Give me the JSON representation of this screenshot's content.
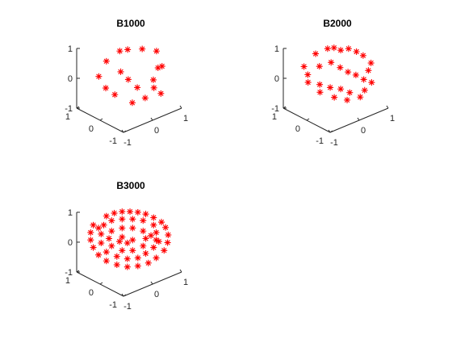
{
  "figure": {
    "background": "#ffffff",
    "axis_color": "#262626"
  },
  "chart_data": [
    {
      "type": "scatter3d",
      "title": "B1000",
      "marker": "*",
      "color": "#ff0000",
      "xlim": [
        -1,
        1
      ],
      "ylim": [
        -1,
        1
      ],
      "zlim": [
        -1,
        1
      ],
      "xticks": [
        "-1",
        "0",
        "1"
      ],
      "yticks": [
        "-1",
        "0",
        "1"
      ],
      "zticks": [
        "-1",
        "0",
        "1"
      ],
      "grid": false,
      "view": {
        "azimuth": -37.5,
        "elevation": 30
      },
      "points": [
        {
          "x": -0.3,
          "y": 0.6,
          "z": 0.45
        },
        {
          "x": 0.0,
          "y": 0.4,
          "z": 0.75
        },
        {
          "x": 0.15,
          "y": 0.25,
          "z": 0.8
        },
        {
          "x": 0.45,
          "y": 0.0,
          "z": 0.8
        },
        {
          "x": 0.7,
          "y": -0.3,
          "z": 0.75
        },
        {
          "x": 0.85,
          "y": -0.35,
          "z": 0.2
        },
        {
          "x": 0.55,
          "y": -0.55,
          "z": 0.35
        },
        {
          "x": 0.35,
          "y": -0.6,
          "z": 0.05
        },
        {
          "x": -0.4,
          "y": 0.8,
          "z": -0.1
        },
        {
          "x": -0.25,
          "y": 0.05,
          "z": 0.3
        },
        {
          "x": 0.05,
          "y": 0.1,
          "z": -0.1
        },
        {
          "x": 0.2,
          "y": -0.1,
          "z": -0.35
        },
        {
          "x": 0.45,
          "y": -0.5,
          "z": -0.3
        },
        {
          "x": -0.2,
          "y": 0.75,
          "z": -0.55
        },
        {
          "x": -0.05,
          "y": 0.55,
          "z": -0.75
        },
        {
          "x": 0.15,
          "y": 0.05,
          "z": -0.9
        },
        {
          "x": 0.35,
          "y": -0.25,
          "z": -0.7
        },
        {
          "x": 0.65,
          "y": -0.55,
          "z": -0.55
        }
      ]
    },
    {
      "type": "scatter3d",
      "title": "B2000",
      "marker": "*",
      "color": "#ff0000",
      "xlim": [
        -1,
        1
      ],
      "ylim": [
        -1,
        1
      ],
      "zlim": [
        -1,
        1
      ],
      "xticks": [
        "-1",
        "0",
        "1"
      ],
      "yticks": [
        "-1",
        "0",
        "1"
      ],
      "zticks": [
        "-1",
        "0",
        "1"
      ],
      "grid": false,
      "view": {
        "azimuth": -37.5,
        "elevation": 30
      },
      "points": [
        {
          "x": -0.25,
          "y": 0.55,
          "z": 0.7
        },
        {
          "x": 0.0,
          "y": 0.35,
          "z": 0.85
        },
        {
          "x": 0.1,
          "y": 0.2,
          "z": 0.9
        },
        {
          "x": 0.25,
          "y": 0.1,
          "z": 0.8
        },
        {
          "x": 0.4,
          "y": -0.05,
          "z": 0.85
        },
        {
          "x": 0.55,
          "y": -0.2,
          "z": 0.75
        },
        {
          "x": 0.7,
          "y": -0.3,
          "z": 0.6
        },
        {
          "x": 0.85,
          "y": -0.45,
          "z": 0.35
        },
        {
          "x": 0.8,
          "y": -0.4,
          "z": 0.1
        },
        {
          "x": -0.45,
          "y": 0.8,
          "z": 0.25
        },
        {
          "x": -0.4,
          "y": 0.7,
          "z": 0.0
        },
        {
          "x": -0.2,
          "y": 0.45,
          "z": 0.3
        },
        {
          "x": 0.0,
          "y": 0.2,
          "z": 0.45
        },
        {
          "x": 0.15,
          "y": 0.0,
          "z": 0.3
        },
        {
          "x": 0.3,
          "y": -0.15,
          "z": 0.15
        },
        {
          "x": 0.45,
          "y": -0.3,
          "z": 0.05
        },
        {
          "x": 0.6,
          "y": -0.45,
          "z": -0.1
        },
        {
          "x": 0.75,
          "y": -0.6,
          "z": -0.2
        },
        {
          "x": 0.55,
          "y": -0.55,
          "z": -0.4
        },
        {
          "x": -0.35,
          "y": 0.75,
          "z": -0.3
        },
        {
          "x": -0.15,
          "y": 0.5,
          "z": -0.35
        },
        {
          "x": 0.05,
          "y": 0.3,
          "z": -0.45
        },
        {
          "x": 0.25,
          "y": 0.1,
          "z": -0.5
        },
        {
          "x": 0.4,
          "y": -0.1,
          "z": -0.6
        },
        {
          "x": 0.15,
          "y": 0.25,
          "z": -0.8
        },
        {
          "x": 0.35,
          "y": -0.05,
          "z": -0.85
        },
        {
          "x": -0.1,
          "y": 0.55,
          "z": -0.65
        },
        {
          "x": 0.6,
          "y": -0.3,
          "z": -0.75
        }
      ]
    },
    {
      "type": "scatter3d",
      "title": "B3000",
      "marker": "*",
      "color": "#ff0000",
      "xlim": [
        -1,
        1
      ],
      "ylim": [
        -1,
        1
      ],
      "zlim": [
        -1,
        1
      ],
      "xticks": [
        "-1",
        "0",
        "1"
      ],
      "yticks": [
        "-1",
        "0",
        "1"
      ],
      "zticks": [
        "-1",
        "0",
        "1"
      ],
      "grid": false,
      "view": {
        "azimuth": -37.5,
        "elevation": 30
      },
      "points": [
        {
          "x": -0.3,
          "y": 0.6,
          "z": 0.75
        },
        {
          "x": -0.15,
          "y": 0.45,
          "z": 0.85
        },
        {
          "x": 0.0,
          "y": 0.3,
          "z": 0.9
        },
        {
          "x": 0.15,
          "y": 0.15,
          "z": 0.9
        },
        {
          "x": 0.3,
          "y": 0.0,
          "z": 0.88
        },
        {
          "x": 0.45,
          "y": -0.15,
          "z": 0.82
        },
        {
          "x": 0.6,
          "y": -0.3,
          "z": 0.7
        },
        {
          "x": 0.75,
          "y": -0.45,
          "z": 0.55
        },
        {
          "x": 0.85,
          "y": -0.5,
          "z": 0.35
        },
        {
          "x": 0.9,
          "y": -0.55,
          "z": 0.1
        },
        {
          "x": 0.88,
          "y": -0.55,
          "z": -0.15
        },
        {
          "x": 0.8,
          "y": -0.5,
          "z": -0.4
        },
        {
          "x": -0.55,
          "y": 0.85,
          "z": 0.45
        },
        {
          "x": -0.6,
          "y": 0.9,
          "z": 0.2
        },
        {
          "x": -0.6,
          "y": 0.9,
          "z": -0.05
        },
        {
          "x": -0.55,
          "y": 0.85,
          "z": -0.3
        },
        {
          "x": -0.45,
          "y": 0.75,
          "z": -0.55
        },
        {
          "x": -0.3,
          "y": 0.6,
          "z": -0.75
        },
        {
          "x": -0.1,
          "y": 0.4,
          "z": -0.88
        },
        {
          "x": 0.1,
          "y": 0.2,
          "z": -0.95
        },
        {
          "x": 0.3,
          "y": 0.0,
          "z": -0.92
        },
        {
          "x": 0.5,
          "y": -0.2,
          "z": -0.82
        },
        {
          "x": 0.65,
          "y": -0.35,
          "z": -0.65
        },
        {
          "x": -0.35,
          "y": 0.65,
          "z": 0.45
        },
        {
          "x": -0.2,
          "y": 0.5,
          "z": 0.6
        },
        {
          "x": 0.0,
          "y": 0.3,
          "z": 0.65
        },
        {
          "x": 0.2,
          "y": 0.1,
          "z": 0.65
        },
        {
          "x": 0.4,
          "y": -0.1,
          "z": 0.6
        },
        {
          "x": 0.6,
          "y": -0.3,
          "z": 0.45
        },
        {
          "x": 0.65,
          "y": -0.35,
          "z": 0.2
        },
        {
          "x": 0.65,
          "y": -0.35,
          "z": -0.05
        },
        {
          "x": 0.6,
          "y": -0.3,
          "z": -0.3
        },
        {
          "x": -0.4,
          "y": 0.7,
          "z": 0.15
        },
        {
          "x": -0.4,
          "y": 0.7,
          "z": -0.15
        },
        {
          "x": -0.3,
          "y": 0.6,
          "z": -0.45
        },
        {
          "x": -0.1,
          "y": 0.4,
          "z": -0.6
        },
        {
          "x": 0.1,
          "y": 0.2,
          "z": -0.68
        },
        {
          "x": 0.3,
          "y": 0.0,
          "z": -0.65
        },
        {
          "x": 0.45,
          "y": -0.15,
          "z": -0.5
        },
        {
          "x": -0.2,
          "y": 0.5,
          "z": 0.25
        },
        {
          "x": 0.0,
          "y": 0.3,
          "z": 0.35
        },
        {
          "x": 0.2,
          "y": 0.1,
          "z": 0.35
        },
        {
          "x": 0.4,
          "y": -0.1,
          "z": 0.25
        },
        {
          "x": 0.45,
          "y": -0.15,
          "z": 0.0
        },
        {
          "x": 0.4,
          "y": -0.1,
          "z": -0.25
        },
        {
          "x": 0.2,
          "y": 0.1,
          "z": -0.4
        },
        {
          "x": 0.0,
          "y": 0.3,
          "z": -0.4
        },
        {
          "x": -0.2,
          "y": 0.5,
          "z": -0.25
        },
        {
          "x": -0.25,
          "y": 0.55,
          "z": 0.0
        },
        {
          "x": 0.0,
          "y": 0.3,
          "z": 0.05
        },
        {
          "x": 0.2,
          "y": 0.1,
          "z": -0.05
        },
        {
          "x": 0.1,
          "y": 0.2,
          "z": -0.15
        },
        {
          "x": -0.05,
          "y": 0.35,
          "z": -0.1
        },
        {
          "x": 0.55,
          "y": -0.25,
          "z": 0.1
        },
        {
          "x": -0.45,
          "y": 0.75,
          "z": 0.35
        },
        {
          "x": 0.7,
          "y": -0.4,
          "z": -0.1
        }
      ]
    }
  ]
}
